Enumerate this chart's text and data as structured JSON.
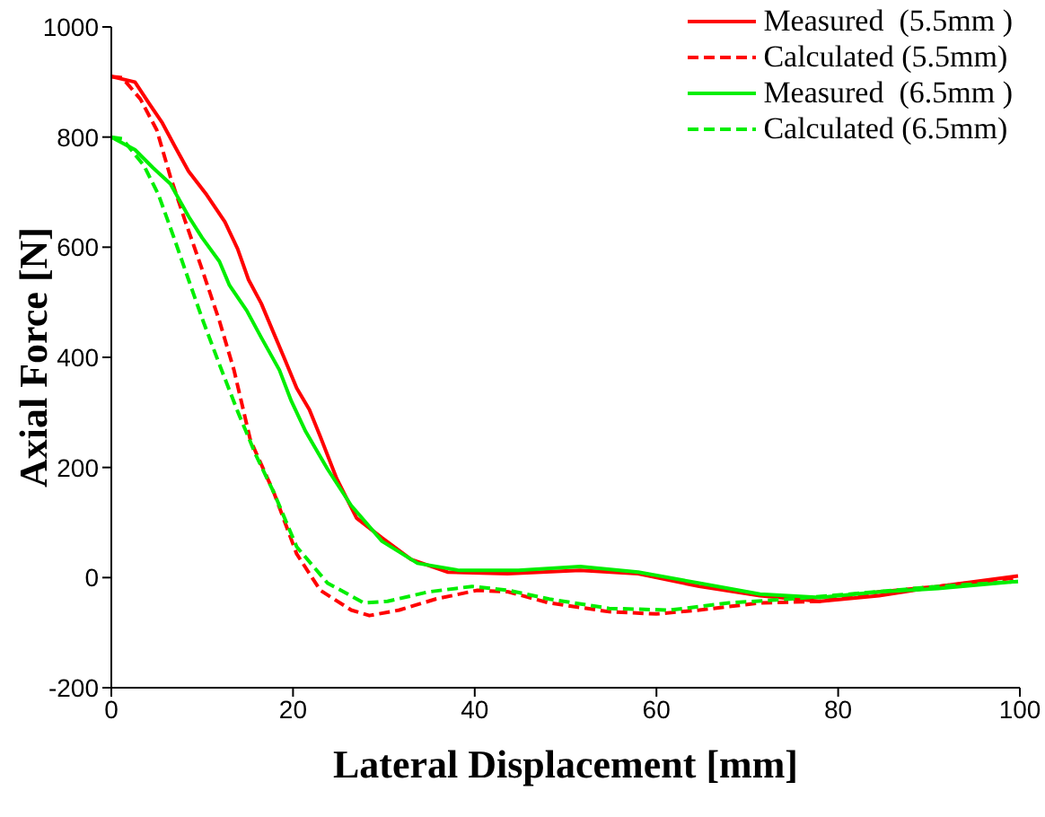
{
  "chart_data": {
    "type": "line",
    "xlabel": "Lateral Displacement [mm]",
    "ylabel": "Axial Force [N]",
    "xlim": [
      0,
      100
    ],
    "xticks": [
      0,
      20,
      40,
      60,
      80,
      100
    ],
    "ylim": [
      -200,
      1000
    ],
    "yticks": [
      -200,
      0,
      200,
      400,
      600,
      800,
      1000
    ],
    "grid": false,
    "legend": "top right",
    "marker": "none",
    "series": [
      {
        "name": "Measured  (5.5mm )",
        "color": "#ff0000",
        "line_style": "solid",
        "x": [
          0,
          2.6,
          4.2,
          5.6,
          7.1,
          8.5,
          10.5,
          12.5,
          13.9,
          15.1,
          16.5,
          17.9,
          19,
          20.4,
          21.8,
          23,
          24.8,
          27,
          29.8,
          33,
          37,
          43.6,
          51.6,
          58,
          64.7,
          71.4,
          78,
          84.5,
          91,
          99.8
        ],
        "values": [
          910,
          900,
          860,
          826,
          780,
          738,
          695,
          646,
          597,
          541,
          498,
          443,
          400,
          344,
          305,
          256,
          180,
          108,
          72,
          33,
          10,
          7,
          13,
          7,
          -16,
          -33,
          -43,
          -33,
          -16,
          3
        ]
      },
      {
        "name": "Calculated (5.5mm)",
        "color": "#ff0000",
        "line_style": "dashed",
        "x": [
          0,
          1.2,
          3.2,
          5,
          6.5,
          8.1,
          9.9,
          11.9,
          13.5,
          15.3,
          17.9,
          20.4,
          23,
          26.4,
          28.4,
          31.7,
          35.7,
          40.3,
          43.7,
          48.2,
          54.8,
          60,
          64.7,
          71.4,
          78,
          84.5,
          91,
          99.8
        ],
        "values": [
          910,
          908,
          869,
          813,
          728,
          649,
          564,
          466,
          377,
          250,
          154,
          43,
          -23,
          -59,
          -69,
          -59,
          -39,
          -23,
          -26,
          -46,
          -62,
          -66,
          -59,
          -46,
          -43,
          -26,
          -16,
          0
        ]
      },
      {
        "name": "Measured  (6.5mm )",
        "color": "#00ee00",
        "line_style": "solid",
        "x": [
          0,
          2.6,
          4.6,
          6.5,
          8.5,
          10,
          11.9,
          13,
          14.9,
          16.5,
          18.5,
          19.8,
          21.4,
          23.8,
          26.4,
          29.8,
          33.7,
          38.3,
          44.8,
          51.6,
          58,
          64.7,
          71.4,
          78,
          84.5,
          91,
          99.8
        ],
        "values": [
          800,
          777,
          744,
          715,
          656,
          617,
          574,
          531,
          485,
          436,
          377,
          321,
          265,
          197,
          131,
          66,
          26,
          13,
          13,
          20,
          10,
          -10,
          -30,
          -36,
          -26,
          -20,
          -7
        ]
      },
      {
        "name": "Calculated (6.5mm)",
        "color": "#00ee00",
        "line_style": "dashed",
        "x": [
          0,
          1.2,
          3.6,
          5.2,
          6.9,
          8.5,
          10.1,
          11.9,
          13.9,
          15.9,
          17.9,
          20.4,
          23.8,
          27.8,
          30.4,
          34.9,
          39.7,
          43.7,
          48.2,
          54.8,
          61.5,
          68,
          74.6,
          81.3,
          91,
          99.8
        ],
        "values": [
          800,
          797,
          748,
          695,
          617,
          541,
          466,
          387,
          302,
          223,
          154,
          56,
          -10,
          -46,
          -43,
          -26,
          -16,
          -23,
          -39,
          -56,
          -59,
          -46,
          -39,
          -30,
          -16,
          -7
        ]
      }
    ]
  }
}
